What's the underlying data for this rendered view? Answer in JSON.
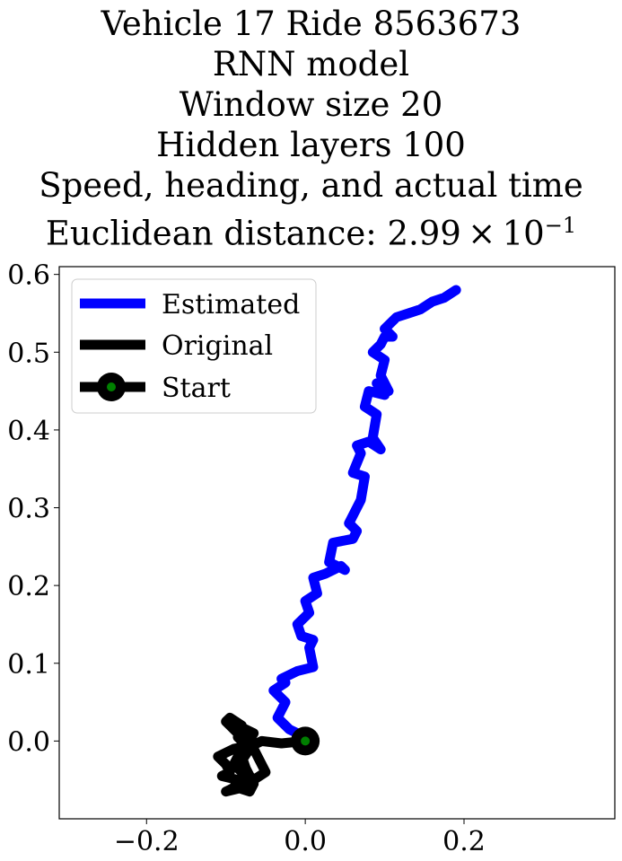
{
  "chart_data": {
    "type": "line",
    "title": [
      "Vehicle 17 Ride 8563673",
      "RNN model",
      "Window size 20",
      "Hidden layers 100",
      "Speed, heading, and actual time"
    ],
    "subtitle_prefix": "Euclidean distance: 2.99 × 10",
    "subtitle_exponent": "−1",
    "xlabel": "",
    "ylabel": "",
    "xlim": [
      -0.31,
      0.39
    ],
    "ylim": [
      -0.1,
      0.61
    ],
    "xticks": [
      -0.2,
      0.0,
      0.2
    ],
    "xtick_labels": [
      "−0.2",
      "0.0",
      "0.2"
    ],
    "yticks": [
      0.0,
      0.1,
      0.2,
      0.3,
      0.4,
      0.5,
      0.6
    ],
    "ytick_labels": [
      "0.0",
      "0.1",
      "0.2",
      "0.3",
      "0.4",
      "0.5",
      "0.6"
    ],
    "grid": false,
    "legend_position": "top-left",
    "series": [
      {
        "name": "Estimated",
        "color": "#0000ff",
        "x": [
          0.0,
          -0.01,
          -0.02,
          -0.035,
          -0.025,
          -0.04,
          -0.025,
          -0.03,
          -0.01,
          0.01,
          0.005,
          0.01,
          -0.005,
          -0.01,
          0.005,
          0.0,
          0.015,
          0.01,
          0.025,
          0.045,
          0.05,
          0.03,
          0.035,
          0.06,
          0.065,
          0.055,
          0.07,
          0.075,
          0.06,
          0.07,
          0.065,
          0.08,
          0.095,
          0.085,
          0.09,
          0.075,
          0.08,
          0.1,
          0.09,
          0.105,
          0.095,
          0.1,
          0.085,
          0.095,
          0.1,
          0.11,
          0.1,
          0.115,
          0.13,
          0.145,
          0.16,
          0.175,
          0.19
        ],
        "y": [
          0.0,
          0.01,
          0.015,
          0.03,
          0.05,
          0.065,
          0.075,
          0.08,
          0.09,
          0.095,
          0.12,
          0.13,
          0.135,
          0.15,
          0.165,
          0.18,
          0.19,
          0.21,
          0.215,
          0.225,
          0.22,
          0.23,
          0.255,
          0.26,
          0.27,
          0.28,
          0.31,
          0.34,
          0.345,
          0.37,
          0.38,
          0.385,
          0.375,
          0.39,
          0.42,
          0.43,
          0.45,
          0.445,
          0.46,
          0.45,
          0.47,
          0.49,
          0.5,
          0.51,
          0.52,
          0.52,
          0.53,
          0.545,
          0.55,
          0.555,
          0.565,
          0.57,
          0.58
        ]
      },
      {
        "name": "Original",
        "color": "#000000",
        "x": [
          0.0,
          -0.03,
          -0.055,
          -0.065,
          -0.09,
          -0.11,
          -0.1,
          -0.095,
          -0.105,
          -0.085,
          -0.09,
          -0.1,
          -0.08,
          -0.075,
          -0.09,
          -0.085,
          -0.075,
          -0.08,
          -0.085,
          -0.07,
          -0.065,
          -0.075,
          -0.08,
          -0.07,
          -0.085,
          -0.075,
          -0.065,
          -0.075,
          -0.08,
          -0.075,
          -0.07,
          -0.065,
          -0.05,
          -0.06,
          -0.065,
          -0.08,
          -0.09,
          -0.1,
          -0.095,
          -0.08
        ],
        "y": [
          0.0,
          -0.003,
          0.0,
          -0.005,
          -0.01,
          -0.02,
          -0.03,
          -0.04,
          -0.045,
          -0.05,
          -0.06,
          -0.065,
          -0.06,
          -0.045,
          -0.03,
          -0.02,
          -0.035,
          -0.05,
          -0.06,
          -0.065,
          -0.055,
          -0.04,
          -0.025,
          -0.01,
          0.005,
          0.015,
          0.01,
          -0.005,
          -0.02,
          -0.035,
          -0.045,
          -0.05,
          -0.04,
          -0.02,
          -0.01,
          0.005,
          0.015,
          0.025,
          0.03,
          0.02
        ]
      }
    ],
    "start_point": {
      "name": "Start",
      "x": 0.0,
      "y": 0.0,
      "outer_color": "#000000",
      "inner_color": "#008000"
    }
  }
}
